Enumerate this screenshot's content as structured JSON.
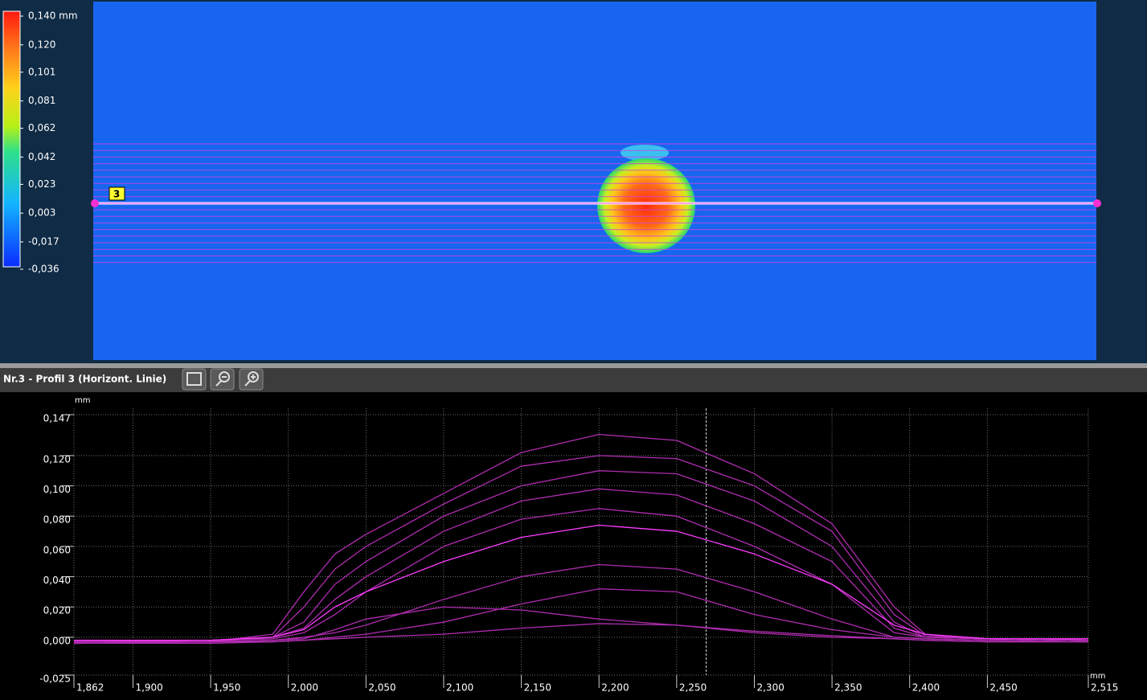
{
  "colorbar": {
    "ticks": [
      {
        "value": 0.14,
        "label": "0,140 mm"
      },
      {
        "value": 0.12,
        "label": "0,120"
      },
      {
        "value": 0.101,
        "label": "0,101"
      },
      {
        "value": 0.081,
        "label": "0,081"
      },
      {
        "value": 0.062,
        "label": "0,062"
      },
      {
        "value": 0.042,
        "label": "0,042"
      },
      {
        "value": 0.023,
        "label": "0,023"
      },
      {
        "value": 0.003,
        "label": "0,003"
      },
      {
        "value": -0.017,
        "label": "-0,017"
      },
      {
        "value": -0.036,
        "label": "-0,036"
      }
    ]
  },
  "profile_marker": "3",
  "toolbar": {
    "title": "Nr.3 - Profil 3 (Horizont. Linie)"
  },
  "chart_data": {
    "type": "line",
    "x_unit": "mm",
    "y_unit": "mm",
    "x": [
      1.862,
      1.95,
      1.99,
      2.01,
      2.03,
      2.05,
      2.1,
      2.15,
      2.2,
      2.25,
      2.3,
      2.35,
      2.39,
      2.41,
      2.45,
      2.515
    ],
    "series": [
      {
        "color": "#b02cb0",
        "values": [
          -0.003,
          -0.003,
          0.002,
          0.03,
          0.055,
          0.068,
          0.095,
          0.122,
          0.134,
          0.13,
          0.108,
          0.075,
          0.02,
          0.002,
          -0.001,
          -0.002
        ]
      },
      {
        "color": "#b02cb0",
        "values": [
          -0.003,
          -0.003,
          0,
          0.02,
          0.045,
          0.06,
          0.088,
          0.113,
          0.12,
          0.118,
          0.1,
          0.07,
          0.015,
          0.001,
          -0.001,
          -0.002
        ]
      },
      {
        "color": "#b02cb0",
        "values": [
          -0.003,
          -0.002,
          0,
          0.01,
          0.035,
          0.05,
          0.08,
          0.1,
          0.11,
          0.108,
          0.09,
          0.06,
          0.01,
          0,
          -0.001,
          -0.002
        ]
      },
      {
        "color": "#b02cb0",
        "values": [
          -0.003,
          -0.002,
          0,
          0.006,
          0.025,
          0.04,
          0.07,
          0.09,
          0.098,
          0.094,
          0.075,
          0.05,
          0.006,
          0,
          -0.001,
          -0.002
        ]
      },
      {
        "color": "#b02cb0",
        "values": [
          -0.003,
          -0.002,
          -0.001,
          0.003,
          0.015,
          0.03,
          0.06,
          0.078,
          0.085,
          0.08,
          0.06,
          0.035,
          0.003,
          0,
          -0.001,
          -0.002
        ]
      },
      {
        "color": "#ff3cff",
        "values": [
          -0.002,
          -0.002,
          0,
          0.005,
          0.02,
          0.03,
          0.05,
          0.066,
          0.074,
          0.07,
          0.055,
          0.035,
          0.008,
          0.002,
          -0.001,
          -0.001
        ]
      },
      {
        "color": "#b02cb0",
        "values": [
          -0.004,
          -0.003,
          -0.002,
          0,
          0.003,
          0.008,
          0.025,
          0.04,
          0.048,
          0.045,
          0.03,
          0.012,
          0,
          -0.001,
          -0.002,
          -0.003
        ]
      },
      {
        "color": "#b02cb0",
        "values": [
          -0.004,
          -0.003,
          -0.003,
          -0.002,
          0,
          0.002,
          0.01,
          0.022,
          0.032,
          0.03,
          0.015,
          0.005,
          0,
          -0.001,
          -0.002,
          -0.003
        ]
      },
      {
        "color": "#b02cb0",
        "values": [
          -0.004,
          -0.003,
          -0.002,
          -0.001,
          0.005,
          0.012,
          0.02,
          0.018,
          0.012,
          0.008,
          0.003,
          0,
          -0.001,
          -0.002,
          -0.003,
          -0.003
        ]
      },
      {
        "color": "#b02cb0",
        "values": [
          -0.004,
          -0.004,
          -0.003,
          -0.002,
          -0.001,
          0,
          0.002,
          0.006,
          0.009,
          0.008,
          0.004,
          0.001,
          -0.001,
          -0.002,
          -0.003,
          -0.003
        ]
      }
    ],
    "xlim": [
      1.862,
      2.515
    ],
    "ylim": [
      -0.025,
      0.147
    ],
    "xticks": [
      {
        "value": 1.862,
        "label": "1,862"
      },
      {
        "value": 1.9,
        "label": "1,900"
      },
      {
        "value": 1.95,
        "label": "1,950"
      },
      {
        "value": 2.0,
        "label": "2,000"
      },
      {
        "value": 2.05,
        "label": "2,050"
      },
      {
        "value": 2.1,
        "label": "2,100"
      },
      {
        "value": 2.15,
        "label": "2,150"
      },
      {
        "value": 2.2,
        "label": "2,200"
      },
      {
        "value": 2.25,
        "label": "2,250"
      },
      {
        "value": 2.3,
        "label": "2,300"
      },
      {
        "value": 2.35,
        "label": "2,350"
      },
      {
        "value": 2.4,
        "label": "2,400"
      },
      {
        "value": 2.45,
        "label": "2,450"
      },
      {
        "value": 2.515,
        "label": "2,515"
      }
    ],
    "yticks": [
      {
        "value": -0.025,
        "label": "-0,025"
      },
      {
        "value": 0,
        "label": "0,000"
      },
      {
        "value": 0.02,
        "label": "0,020"
      },
      {
        "value": 0.04,
        "label": "0,040"
      },
      {
        "value": 0.06,
        "label": "0,060"
      },
      {
        "value": 0.08,
        "label": "0,080"
      },
      {
        "value": 0.1,
        "label": "0,100"
      },
      {
        "value": 0.12,
        "label": "0,120"
      },
      {
        "value": 0.147,
        "label": "0,147"
      }
    ],
    "grid": true,
    "cursor_x": 2.269
  }
}
